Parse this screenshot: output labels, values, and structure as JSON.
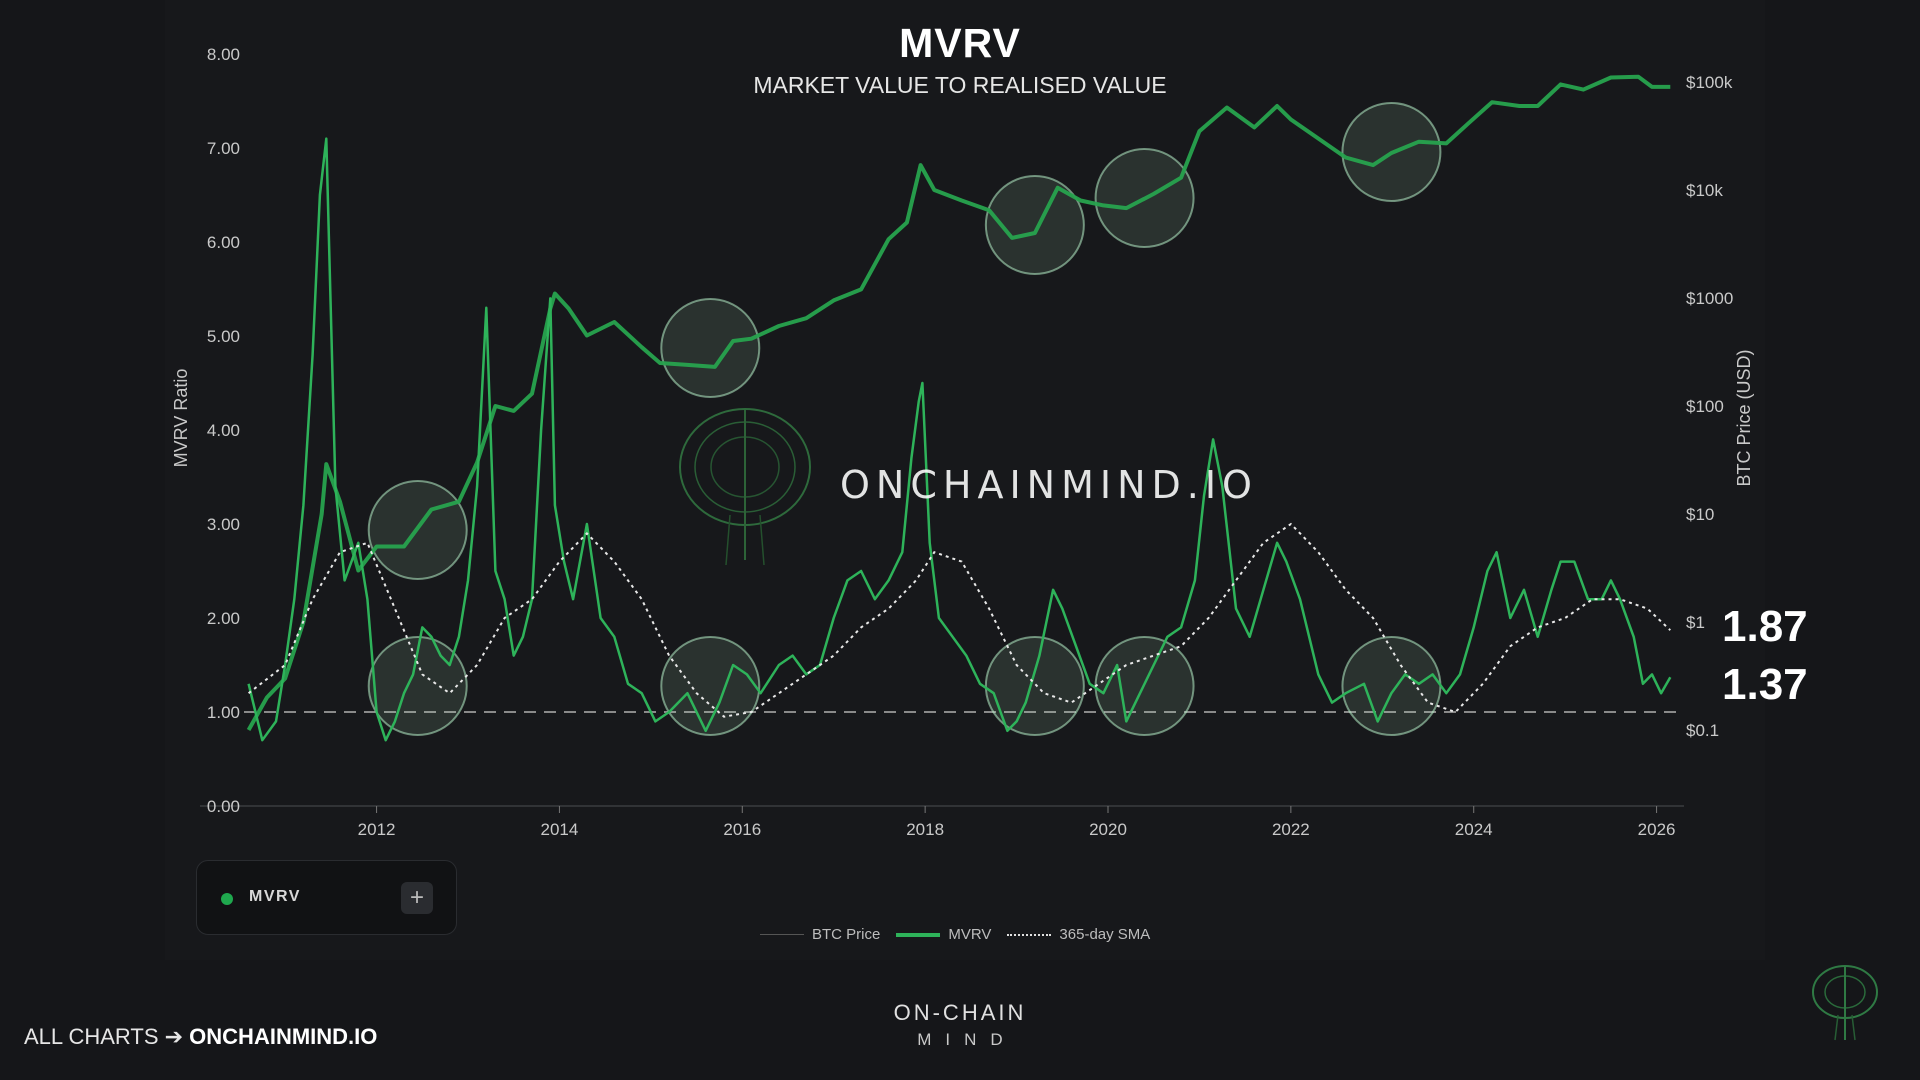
{
  "header": {
    "title": "MVRV",
    "subtitle": "MARKET VALUE TO REALISED VALUE"
  },
  "watermark": "ONCHAINMIND.IO",
  "current_values": {
    "sma": "1.87",
    "mvrv": "1.37"
  },
  "toggle": {
    "label": "MVRV",
    "plus": "+"
  },
  "legend": {
    "price": "BTC Price",
    "mvrv": "MVRV",
    "sma": "365-day SMA"
  },
  "footer": {
    "left_text": "ALL CHARTS ➔",
    "left_link": "ONCHAINMIND.IO",
    "brand_top": "ON-CHAIN",
    "brand_bottom": "MIND"
  },
  "colors": {
    "mvrv": "#2eb35a",
    "price": "#27a34e",
    "background": "#17181b",
    "circle": "#b6f0c8"
  },
  "chart_data": {
    "type": "line",
    "title": "MVRV",
    "subtitle": "MARKET VALUE TO REALISED VALUE",
    "ylabel": "MVRV Ratio",
    "y2label": "BTC Price (USD)",
    "ylim": [
      0,
      8
    ],
    "y2lim": [
      0.1,
      100000
    ],
    "y2_scale": "log",
    "xlim": [
      2010.55,
      2026.3
    ],
    "x_ticks": [
      "2012",
      "2014",
      "2016",
      "2018",
      "2020",
      "2022",
      "2024",
      "2026"
    ],
    "y_ticks": [
      "0.00",
      "1.00",
      "2.00",
      "3.00",
      "4.00",
      "5.00",
      "6.00",
      "7.00",
      "8.00"
    ],
    "y2_ticks": [
      "$0.1",
      "$1",
      "$10",
      "$100",
      "$1000",
      "$10k",
      "$100k"
    ],
    "reference_line": 1.0,
    "grid": false,
    "series": [
      {
        "name": "MVRV",
        "axis": "left",
        "x": [
          2010.6,
          2010.75,
          2010.9,
          2011.0,
          2011.1,
          2011.2,
          2011.3,
          2011.38,
          2011.45,
          2011.55,
          2011.65,
          2011.8,
          2011.9,
          2012.0,
          2012.1,
          2012.2,
          2012.3,
          2012.4,
          2012.5,
          2012.6,
          2012.7,
          2012.8,
          2012.9,
          2013.0,
          2013.1,
          2013.2,
          2013.3,
          2013.4,
          2013.5,
          2013.6,
          2013.7,
          2013.8,
          2013.9,
          2013.95,
          2014.05,
          2014.15,
          2014.3,
          2014.45,
          2014.6,
          2014.75,
          2014.9,
          2015.05,
          2015.2,
          2015.4,
          2015.6,
          2015.75,
          2015.9,
          2016.05,
          2016.2,
          2016.4,
          2016.55,
          2016.7,
          2016.85,
          2017.0,
          2017.15,
          2017.3,
          2017.45,
          2017.6,
          2017.75,
          2017.85,
          2017.93,
          2017.97,
          2018.05,
          2018.15,
          2018.3,
          2018.45,
          2018.6,
          2018.75,
          2018.9,
          2019.0,
          2019.1,
          2019.25,
          2019.4,
          2019.5,
          2019.65,
          2019.8,
          2019.95,
          2020.1,
          2020.2,
          2020.35,
          2020.5,
          2020.65,
          2020.8,
          2020.95,
          2021.05,
          2021.15,
          2021.25,
          2021.4,
          2021.55,
          2021.7,
          2021.85,
          2021.95,
          2022.1,
          2022.3,
          2022.45,
          2022.6,
          2022.8,
          2022.95,
          2023.1,
          2023.25,
          2023.4,
          2023.55,
          2023.7,
          2023.85,
          2024.0,
          2024.15,
          2024.25,
          2024.4,
          2024.55,
          2024.7,
          2024.85,
          2024.95,
          2025.1,
          2025.25,
          2025.4,
          2025.5,
          2025.6,
          2025.75,
          2025.85,
          2025.95,
          2026.05,
          2026.15
        ],
        "y": [
          1.3,
          0.7,
          0.9,
          1.5,
          2.2,
          3.2,
          4.8,
          6.5,
          7.1,
          3.4,
          2.4,
          2.8,
          2.2,
          1.0,
          0.7,
          0.9,
          1.2,
          1.4,
          1.9,
          1.8,
          1.6,
          1.5,
          1.8,
          2.4,
          3.4,
          5.3,
          2.5,
          2.2,
          1.6,
          1.8,
          2.2,
          4.0,
          5.4,
          3.2,
          2.6,
          2.2,
          3.0,
          2.0,
          1.8,
          1.3,
          1.2,
          0.9,
          1.0,
          1.2,
          0.8,
          1.1,
          1.5,
          1.4,
          1.2,
          1.5,
          1.6,
          1.4,
          1.5,
          2.0,
          2.4,
          2.5,
          2.2,
          2.4,
          2.7,
          3.7,
          4.3,
          4.5,
          2.8,
          2.0,
          1.8,
          1.6,
          1.3,
          1.2,
          0.8,
          0.9,
          1.1,
          1.6,
          2.3,
          2.1,
          1.7,
          1.3,
          1.2,
          1.5,
          0.9,
          1.2,
          1.5,
          1.8,
          1.9,
          2.4,
          3.3,
          3.9,
          3.4,
          2.1,
          1.8,
          2.3,
          2.8,
          2.6,
          2.2,
          1.4,
          1.1,
          1.2,
          1.3,
          0.9,
          1.2,
          1.4,
          1.3,
          1.4,
          1.2,
          1.4,
          1.9,
          2.5,
          2.7,
          2.0,
          2.3,
          1.8,
          2.3,
          2.6,
          2.6,
          2.2,
          2.2,
          2.4,
          2.2,
          1.8,
          1.3,
          1.4,
          1.2,
          1.37
        ]
      },
      {
        "name": "365-day SMA",
        "axis": "left",
        "x": [
          2010.6,
          2011.0,
          2011.3,
          2011.6,
          2011.9,
          2012.2,
          2012.5,
          2012.8,
          2013.1,
          2013.4,
          2013.7,
          2014.0,
          2014.3,
          2014.6,
          2014.9,
          2015.2,
          2015.5,
          2015.8,
          2016.1,
          2016.4,
          2016.7,
          2017.0,
          2017.3,
          2017.6,
          2017.9,
          2018.1,
          2018.4,
          2018.7,
          2019.0,
          2019.3,
          2019.6,
          2019.9,
          2020.2,
          2020.5,
          2020.8,
          2021.1,
          2021.4,
          2021.7,
          2022.0,
          2022.3,
          2022.6,
          2022.9,
          2023.2,
          2023.5,
          2023.8,
          2024.1,
          2024.4,
          2024.7,
          2025.0,
          2025.3,
          2025.6,
          2025.9,
          2026.15
        ],
        "y": [
          1.2,
          1.5,
          2.2,
          2.7,
          2.8,
          2.1,
          1.4,
          1.2,
          1.5,
          2.0,
          2.2,
          2.6,
          2.9,
          2.6,
          2.2,
          1.6,
          1.2,
          0.95,
          1.0,
          1.2,
          1.4,
          1.6,
          1.9,
          2.1,
          2.4,
          2.7,
          2.6,
          2.1,
          1.5,
          1.2,
          1.1,
          1.3,
          1.5,
          1.6,
          1.7,
          2.0,
          2.4,
          2.8,
          3.0,
          2.7,
          2.3,
          2.0,
          1.5,
          1.1,
          1.0,
          1.3,
          1.7,
          1.9,
          2.0,
          2.2,
          2.2,
          2.1,
          1.87
        ]
      },
      {
        "name": "BTC Price",
        "axis": "right",
        "x": [
          2010.6,
          2010.8,
          2011.0,
          2011.2,
          2011.4,
          2011.45,
          2011.6,
          2011.8,
          2012.0,
          2012.3,
          2012.6,
          2012.9,
          2013.1,
          2013.3,
          2013.5,
          2013.7,
          2013.9,
          2013.95,
          2014.1,
          2014.3,
          2014.6,
          2014.9,
          2015.1,
          2015.4,
          2015.7,
          2015.9,
          2016.1,
          2016.4,
          2016.7,
          2017.0,
          2017.3,
          2017.6,
          2017.8,
          2017.95,
          2018.1,
          2018.4,
          2018.7,
          2018.95,
          2019.2,
          2019.45,
          2019.7,
          2019.95,
          2020.2,
          2020.5,
          2020.8,
          2021.0,
          2021.3,
          2021.6,
          2021.85,
          2022.0,
          2022.3,
          2022.6,
          2022.9,
          2023.1,
          2023.4,
          2023.7,
          2023.95,
          2024.2,
          2024.5,
          2024.7,
          2024.95,
          2025.2,
          2025.5,
          2025.8,
          2025.95,
          2026.15
        ],
        "y": [
          0.1,
          0.2,
          0.3,
          1,
          10,
          29,
          13,
          3,
          5,
          5,
          11,
          13,
          30,
          100,
          90,
          130,
          800,
          1100,
          800,
          450,
          600,
          350,
          250,
          240,
          230,
          400,
          420,
          550,
          650,
          950,
          1200,
          3500,
          5000,
          17000,
          10000,
          8000,
          6500,
          3600,
          4000,
          10500,
          8000,
          7200,
          6800,
          9200,
          13000,
          35000,
          58000,
          38000,
          60000,
          45000,
          30000,
          20000,
          17000,
          22000,
          28000,
          27000,
          42000,
          65000,
          60000,
          60000,
          95000,
          85000,
          110000,
          112000,
          90000,
          90000
        ]
      }
    ]
  }
}
